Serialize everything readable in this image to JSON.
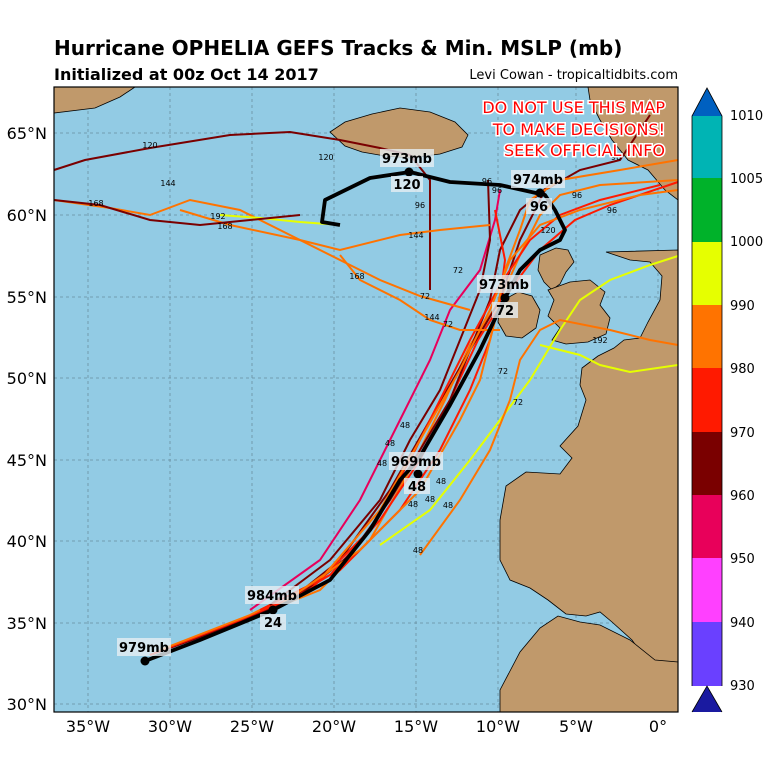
{
  "header": {
    "title": "Hurricane OPHELIA GEFS Tracks & Min. MSLP (mb)",
    "subtitle": "Initialized at 00z Oct 14 2017",
    "credit": "Levi Cowan - tropicaltidbits.com"
  },
  "warning": [
    "DO NOT USE THIS MAP",
    "TO MAKE DECISIONS!",
    "SEEK OFFICIAL INFO"
  ],
  "axes": {
    "lon_ticks": [
      "35°W",
      "30°W",
      "25°W",
      "20°W",
      "15°W",
      "10°W",
      "5°W",
      "0°"
    ],
    "lat_ticks": [
      "65°N",
      "60°N",
      "55°N",
      "50°N",
      "45°N",
      "40°N",
      "35°N",
      "30°N"
    ]
  },
  "colorbar": {
    "ticks": [
      "1010",
      "1005",
      "1000",
      "990",
      "980",
      "970",
      "960",
      "950",
      "940",
      "930"
    ],
    "colors": [
      "#1a1aa0",
      "#6a40ff",
      "#ff40ff",
      "#e8005a",
      "#7a0000",
      "#ff1a00",
      "#ff7300",
      "#e6ff00",
      "#00b22a",
      "#00b4b4",
      "#0060c0"
    ]
  },
  "main_track": {
    "color": "#000000",
    "labels": [
      {
        "mslp": "979mb",
        "hour": ""
      },
      {
        "mslp": "984mb",
        "hour": "24"
      },
      {
        "mslp": "969mb",
        "hour": "48"
      },
      {
        "mslp": "973mb",
        "hour": "72"
      },
      {
        "mslp": "974mb",
        "hour": "96"
      },
      {
        "mslp": "973mb",
        "hour": "120"
      }
    ]
  },
  "member_labels": [
    "120",
    "144",
    "168",
    "192",
    "168",
    "120",
    "96",
    "144",
    "168",
    "72",
    "72",
    "144",
    "72",
    "192",
    "72",
    "72",
    "48",
    "48",
    "48",
    "48",
    "48",
    "48",
    "48",
    "48",
    "96",
    "96",
    "96",
    "96",
    "96",
    "120"
  ],
  "colors": {
    "ocean": "#92cbe4",
    "land": "#c0996b",
    "main_track": "#000000"
  }
}
